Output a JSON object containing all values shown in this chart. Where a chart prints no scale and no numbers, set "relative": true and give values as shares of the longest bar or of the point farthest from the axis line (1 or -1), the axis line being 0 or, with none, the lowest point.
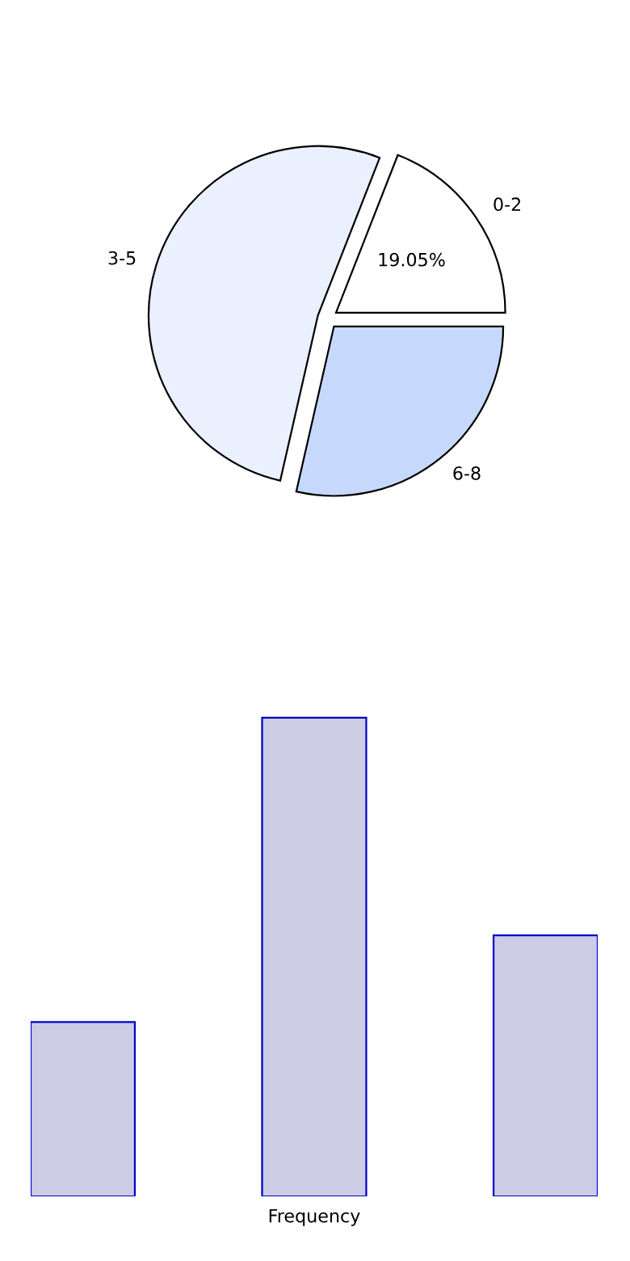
{
  "chart_data": [
    {
      "type": "pie",
      "categories": [
        "0-2",
        "3-5",
        "6-8"
      ],
      "values": [
        19.05,
        52.38,
        28.57
      ],
      "colors": [
        "#ffffff",
        "#eaf0fd",
        "#c6d9fd"
      ],
      "value_labels": [
        "19.05%",
        null,
        null
      ]
    },
    {
      "type": "bar",
      "categories": [
        null,
        null,
        null
      ],
      "values": [
        0.364,
        1,
        0.545
      ],
      "relative": true,
      "color": "#ccccE4",
      "xlabel": "Frequency"
    }
  ]
}
